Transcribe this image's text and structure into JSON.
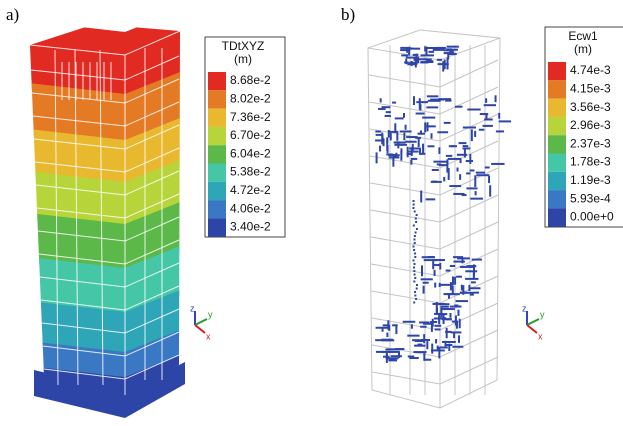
{
  "panels": [
    {
      "label": "a)",
      "legend": {
        "title": "TDtXYZ",
        "unit": "(m)",
        "entries": [
          {
            "label": "8.68e-2",
            "color": "#e02a22"
          },
          {
            "label": "8.02e-2",
            "color": "#e57a25"
          },
          {
            "label": "7.36e-2",
            "color": "#e8b82e"
          },
          {
            "label": "6.70e-2",
            "color": "#b7d53a"
          },
          {
            "label": "6.04e-2",
            "color": "#5cb848"
          },
          {
            "label": "5.38e-2",
            "color": "#45c6a6"
          },
          {
            "label": "4.72e-2",
            "color": "#2fa6b8"
          },
          {
            "label": "4.06e-2",
            "color": "#3a78c4"
          },
          {
            "label": "3.40e-2",
            "color": "#2e45a8"
          }
        ]
      },
      "triad": {
        "z": "z",
        "y": "y",
        "x": "x"
      }
    },
    {
      "label": "b)",
      "legend": {
        "title": "Ecw1",
        "unit": "(m)",
        "entries": [
          {
            "label": "4.74e-3",
            "color": "#e02a22"
          },
          {
            "label": "4.15e-3",
            "color": "#e57a25"
          },
          {
            "label": "3.56e-3",
            "color": "#e8b82e"
          },
          {
            "label": "2.96e-3",
            "color": "#b7d53a"
          },
          {
            "label": "2.37e-3",
            "color": "#5cb848"
          },
          {
            "label": "1.78e-3",
            "color": "#45c6a6"
          },
          {
            "label": "1.19e-3",
            "color": "#2fa6b8"
          },
          {
            "label": "5.93e-4",
            "color": "#3a78c4"
          },
          {
            "label": "0.00e+0",
            "color": "#2e45a8"
          }
        ]
      },
      "triad": {
        "z": "z",
        "y": "y",
        "x": "x"
      }
    }
  ]
}
